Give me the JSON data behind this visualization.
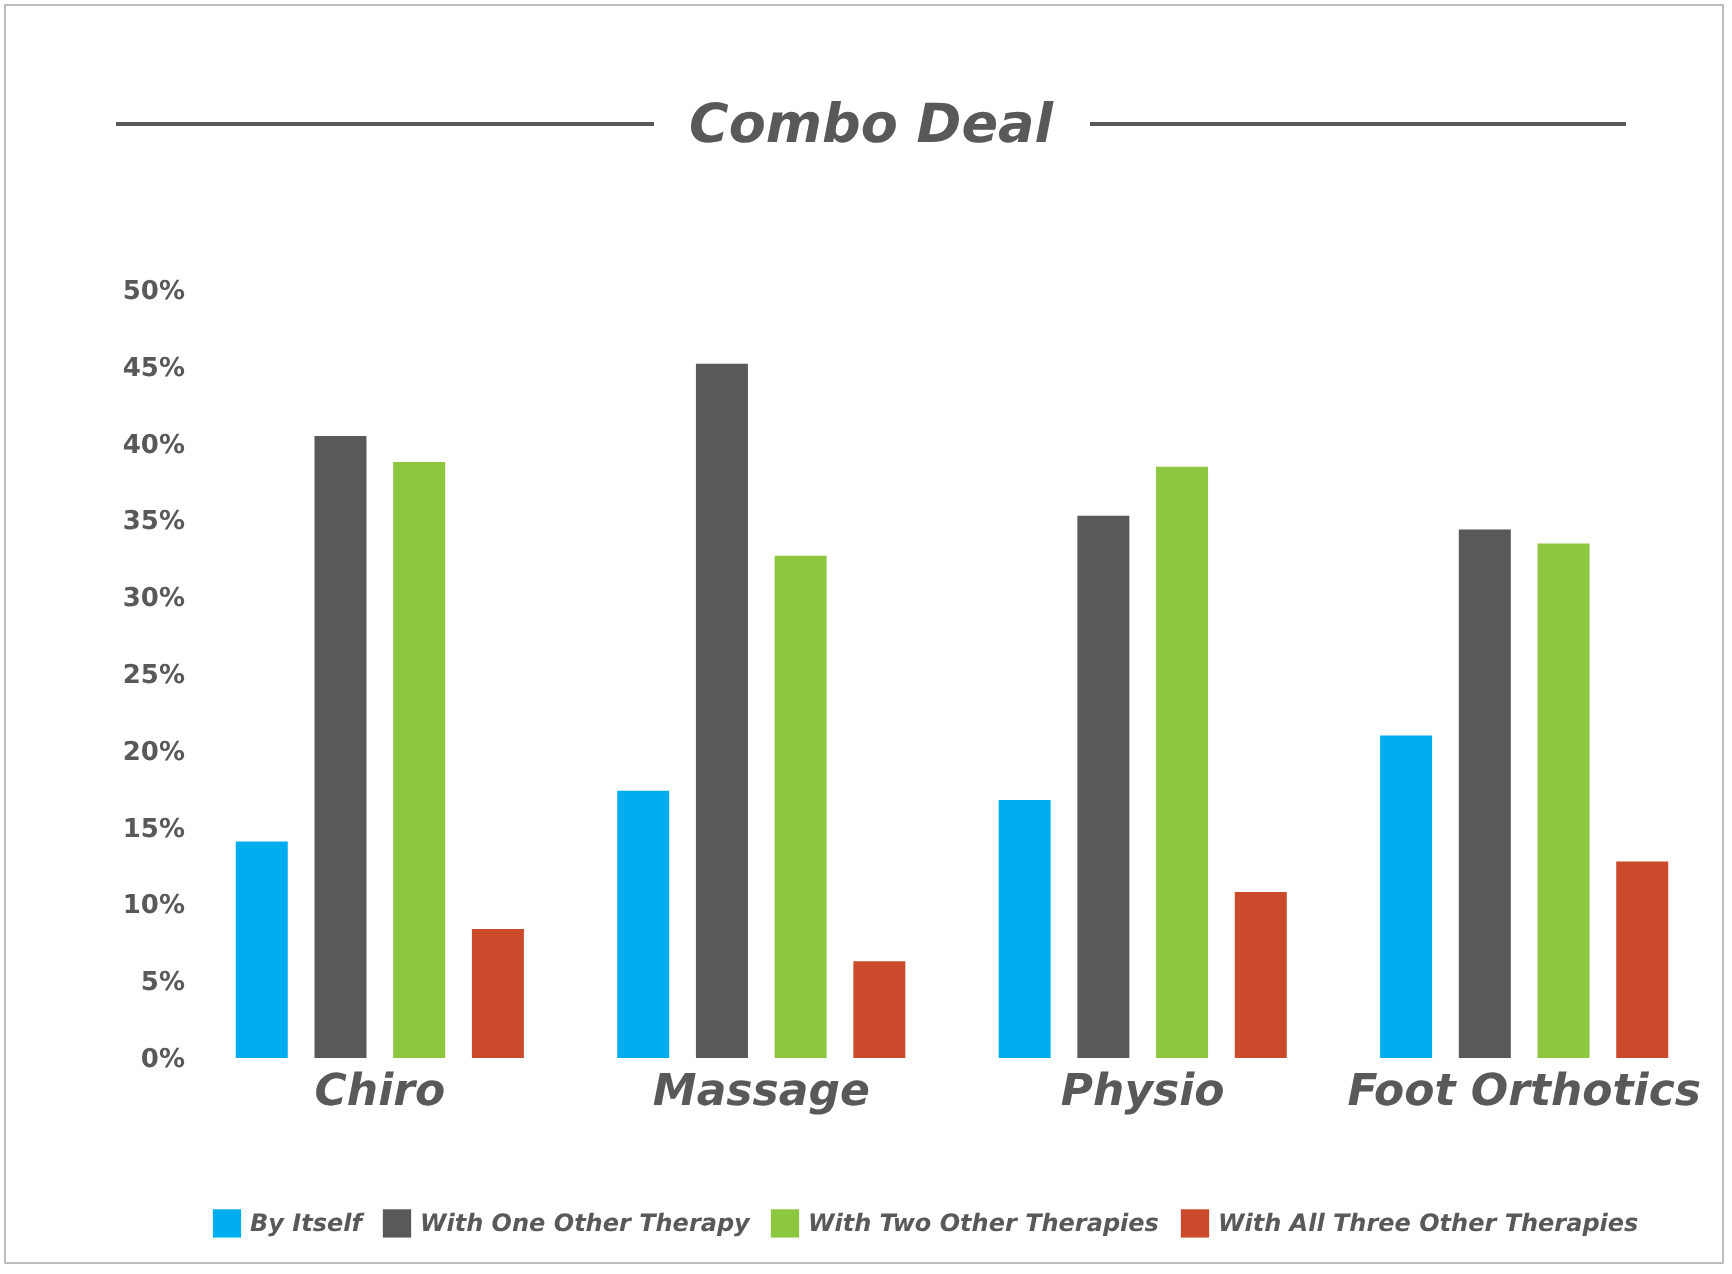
{
  "chart_data": {
    "type": "bar",
    "title": "Combo Deal",
    "categories": [
      "Chiro",
      "Massage",
      "Physio",
      "Foot Orthotics"
    ],
    "series": [
      {
        "name": "By Itself",
        "color": "#00aeef",
        "values": [
          14.1,
          17.4,
          16.8,
          21.0
        ]
      },
      {
        "name": "With One Other Therapy",
        "color": "#58595b",
        "values": [
          40.5,
          45.2,
          35.3,
          34.4
        ]
      },
      {
        "name": "With Two Other Therapies",
        "color": "#8dc63f",
        "values": [
          38.8,
          32.7,
          38.5,
          33.5
        ]
      },
      {
        "name": "With All Three Other Therapies",
        "color": "#cb4a2b",
        "values": [
          8.4,
          6.3,
          10.8,
          12.8
        ]
      }
    ],
    "ylim": [
      0,
      50
    ],
    "yticks": [
      {
        "value": 0,
        "label": "0%"
      },
      {
        "value": 5,
        "label": "5%"
      },
      {
        "value": 10,
        "label": "10%"
      },
      {
        "value": 15,
        "label": "15%"
      },
      {
        "value": 20,
        "label": "20%"
      },
      {
        "value": 25,
        "label": "25%"
      },
      {
        "value": 30,
        "label": "30%"
      },
      {
        "value": 35,
        "label": "35%"
      },
      {
        "value": 40,
        "label": "40%"
      },
      {
        "value": 45,
        "label": "45%"
      },
      {
        "value": 50,
        "label": "50%"
      }
    ],
    "grid": false,
    "legend": "bottom"
  }
}
